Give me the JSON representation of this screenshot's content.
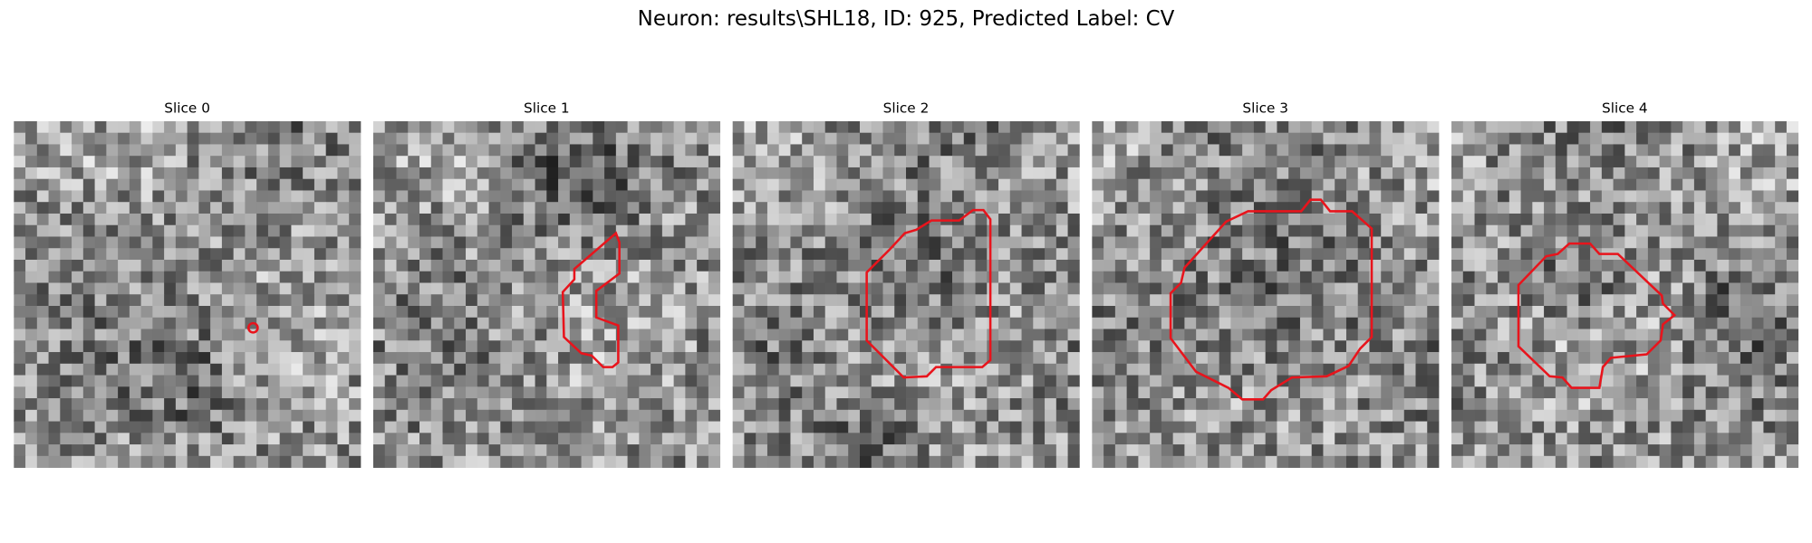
{
  "title": "Neuron: results\\SHL18, ID: 925, Predicted Label: CV",
  "panels": [
    {
      "title": "Slice 0"
    },
    {
      "title": "Slice 1"
    },
    {
      "title": "Slice 2"
    },
    {
      "title": "Slice 3"
    },
    {
      "title": "Slice 4"
    }
  ]
}
